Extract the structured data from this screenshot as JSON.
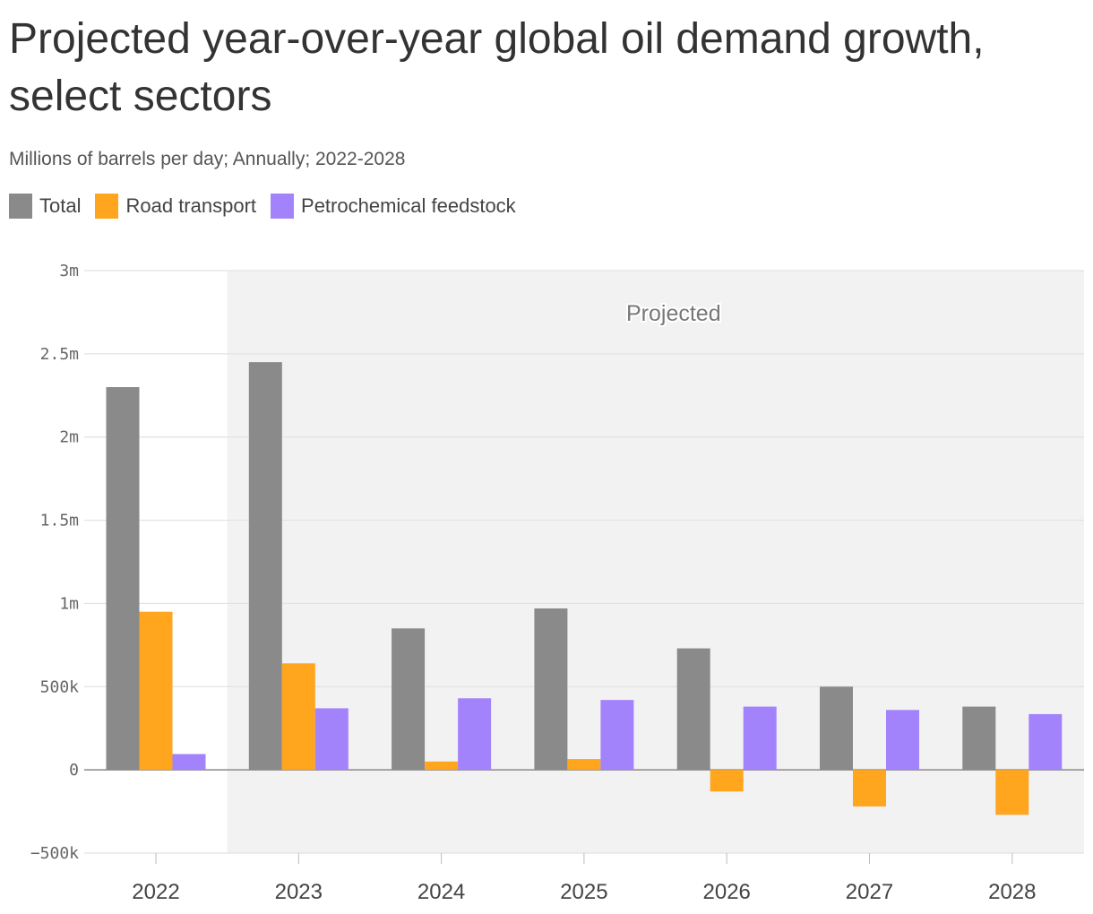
{
  "chart_data": {
    "type": "bar",
    "title": "Projected year-over-year global oil demand growth, select sectors",
    "subtitle": "Millions of barrels per day; Annually; 2022-2028",
    "categories": [
      "2022",
      "2023",
      "2024",
      "2025",
      "2026",
      "2027",
      "2028"
    ],
    "series": [
      {
        "name": "Total",
        "color": "#8a8a8a",
        "values": [
          2300000,
          2450000,
          850000,
          970000,
          730000,
          500000,
          380000
        ]
      },
      {
        "name": "Road transport",
        "color": "#ffa51e",
        "values": [
          950000,
          640000,
          50000,
          65000,
          -130000,
          -220000,
          -270000
        ]
      },
      {
        "name": "Petrochemical feedstock",
        "color": "#a383fb",
        "values": [
          95000,
          370000,
          430000,
          420000,
          380000,
          360000,
          335000
        ]
      }
    ],
    "ylim": [
      -500000,
      3000000
    ],
    "yticks": [
      -500000,
      0,
      500000,
      1000000,
      1500000,
      2000000,
      2500000,
      3000000
    ],
    "ytick_labels": [
      "−500k",
      "0",
      "500k",
      "1m",
      "1.5m",
      "2m",
      "2.5m",
      "3m"
    ],
    "xlabel": "",
    "ylabel": "",
    "grid": true,
    "legend_position": "top-left",
    "annotation": {
      "label": "Projected",
      "from_category": "2023",
      "to_category": "2028"
    }
  }
}
